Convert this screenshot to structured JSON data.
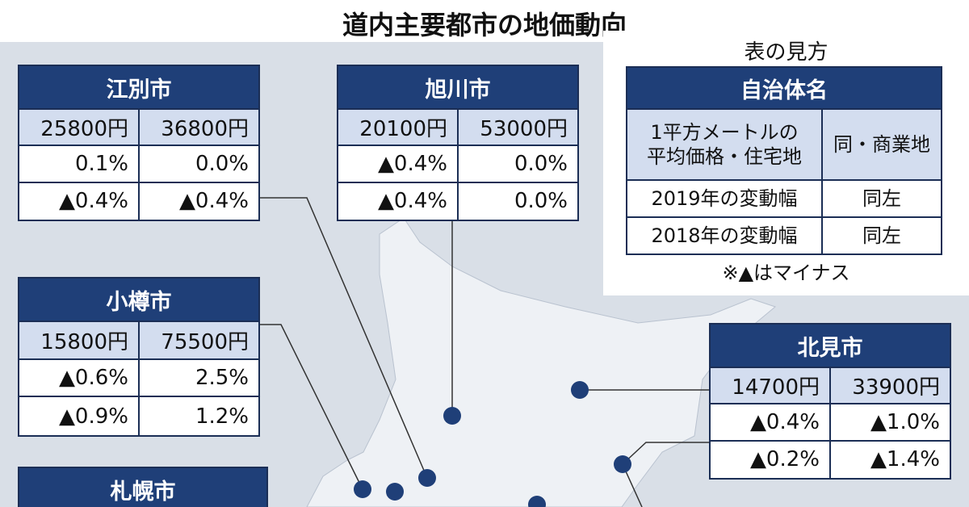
{
  "title": "道内主要都市の地価動向",
  "cities": [
    {
      "name": "江別市",
      "rows": [
        [
          "25800円",
          "36800円"
        ],
        [
          "0.1%",
          "0.0%"
        ],
        [
          "▲0.4%",
          "▲0.4%"
        ]
      ]
    },
    {
      "name": "旭川市",
      "rows": [
        [
          "20100円",
          "53000円"
        ],
        [
          "▲0.4%",
          "0.0%"
        ],
        [
          "▲0.4%",
          "0.0%"
        ]
      ]
    },
    {
      "name": "小樽市",
      "rows": [
        [
          "15800円",
          "75500円"
        ],
        [
          "▲0.6%",
          "2.5%"
        ],
        [
          "▲0.9%",
          "1.2%"
        ]
      ]
    },
    {
      "name": "北見市",
      "rows": [
        [
          "14700円",
          "33900円"
        ],
        [
          "▲0.4%",
          "▲1.0%"
        ],
        [
          "▲0.2%",
          "▲1.4%"
        ]
      ]
    },
    {
      "name": "札幌市",
      "rows": []
    }
  ],
  "legend": {
    "title": "表の見方",
    "header": "自治体名",
    "rows": [
      [
        [
          "1平方メートルの",
          "平均価格・住宅地"
        ],
        [
          "同・商業地"
        ]
      ],
      [
        [
          "2019年の変動幅"
        ],
        [
          "同左"
        ]
      ],
      [
        [
          "2018年の変動幅"
        ],
        [
          "同左"
        ]
      ]
    ],
    "note": "※▲はマイナス"
  }
}
